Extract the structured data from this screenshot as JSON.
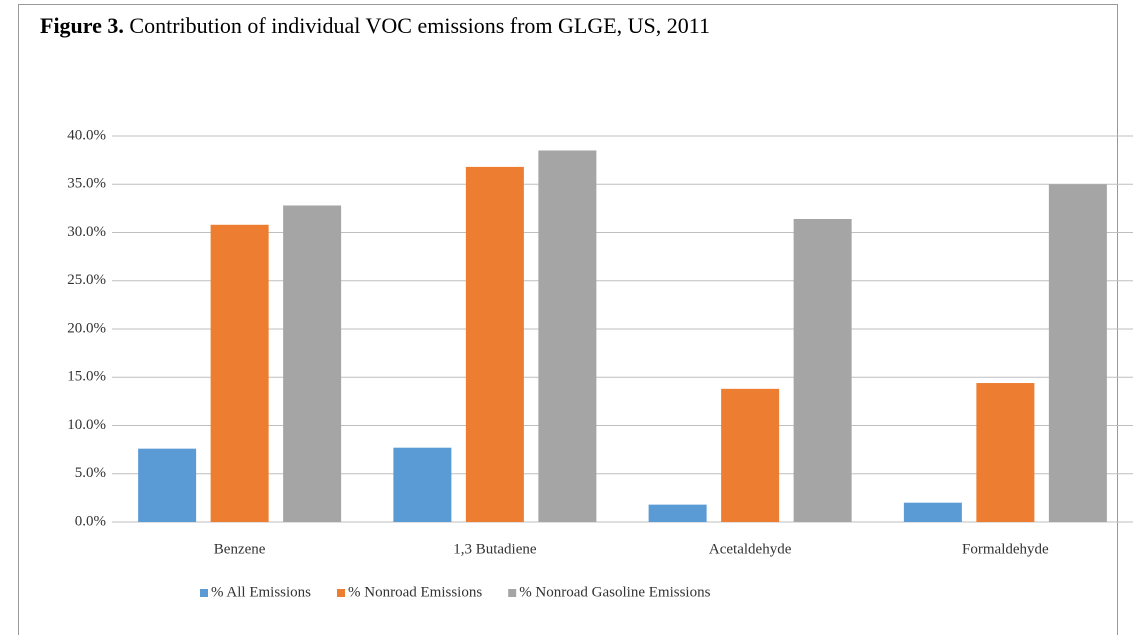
{
  "chart_data": {
    "type": "bar",
    "figure_label": "Figure 3.",
    "title": "Contribution of individual VOC emissions from GLGE, US, 2011",
    "categories": [
      "Benzene",
      "1,3 Butadiene",
      "Acetaldehyde",
      "Formaldehyde"
    ],
    "series": [
      {
        "name": "% All Emissions",
        "color": "#5b9bd5",
        "values": [
          7.6,
          7.7,
          1.8,
          2.0
        ]
      },
      {
        "name": "% Nonroad Emissions",
        "color": "#ed7d31",
        "values": [
          30.8,
          36.8,
          13.8,
          14.4
        ]
      },
      {
        "name": "% Nonroad Gasoline Emissions",
        "color": "#a5a5a5",
        "values": [
          32.8,
          38.5,
          31.4,
          35.0
        ]
      }
    ],
    "ylim": [
      0,
      40
    ],
    "yticks": [
      {
        "value": 0,
        "label": "0.0%"
      },
      {
        "value": 5,
        "label": "5.0%"
      },
      {
        "value": 10,
        "label": "10.0%"
      },
      {
        "value": 15,
        "label": "15.0%"
      },
      {
        "value": 20,
        "label": "20.0%"
      },
      {
        "value": 25,
        "label": "25.0%"
      },
      {
        "value": 30,
        "label": "30.0%"
      },
      {
        "value": 35,
        "label": "35.0%"
      },
      {
        "value": 40,
        "label": "40.0%"
      }
    ],
    "grid": true,
    "legend": "bottom"
  }
}
